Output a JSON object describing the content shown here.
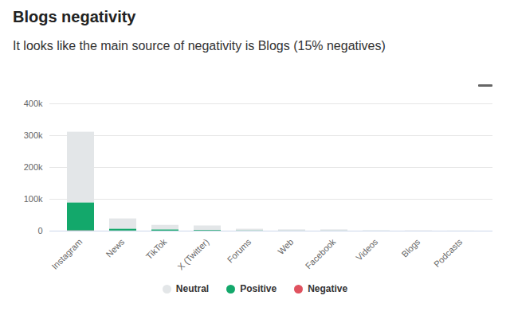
{
  "chart_data": {
    "type": "bar",
    "title": "Blogs negativity",
    "subtitle": "It looks like the main source of negativity is Blogs (15% negatives)",
    "categories": [
      "Instagram",
      "News",
      "TikTok",
      "X (Twitter)",
      "Forums",
      "Web",
      "Facebook",
      "Videos",
      "Blogs",
      "Podcasts"
    ],
    "series": [
      {
        "name": "Neutral",
        "color": "#e3e6e8",
        "values": [
          222000,
          32000,
          14000,
          14000,
          5000,
          3500,
          3500,
          900,
          400,
          250
        ]
      },
      {
        "name": "Positive",
        "color": "#13a86b",
        "values": [
          88000,
          6000,
          4000,
          2000,
          1000,
          500,
          500,
          100,
          50,
          40
        ]
      },
      {
        "name": "Negative",
        "color": "#e0525f",
        "values": [
          1000,
          500,
          200,
          300,
          100,
          50,
          50,
          20,
          80,
          10
        ]
      }
    ],
    "ylim": [
      0,
      400000
    ],
    "yticks": [
      0,
      {
        "value": 100000,
        "label": "100k"
      },
      {
        "value": 200000,
        "label": "200k"
      },
      {
        "value": 300000,
        "label": "300k"
      },
      {
        "value": 400000,
        "label": "400k"
      }
    ],
    "stacked": true,
    "grid": true,
    "legend": "bottom"
  }
}
